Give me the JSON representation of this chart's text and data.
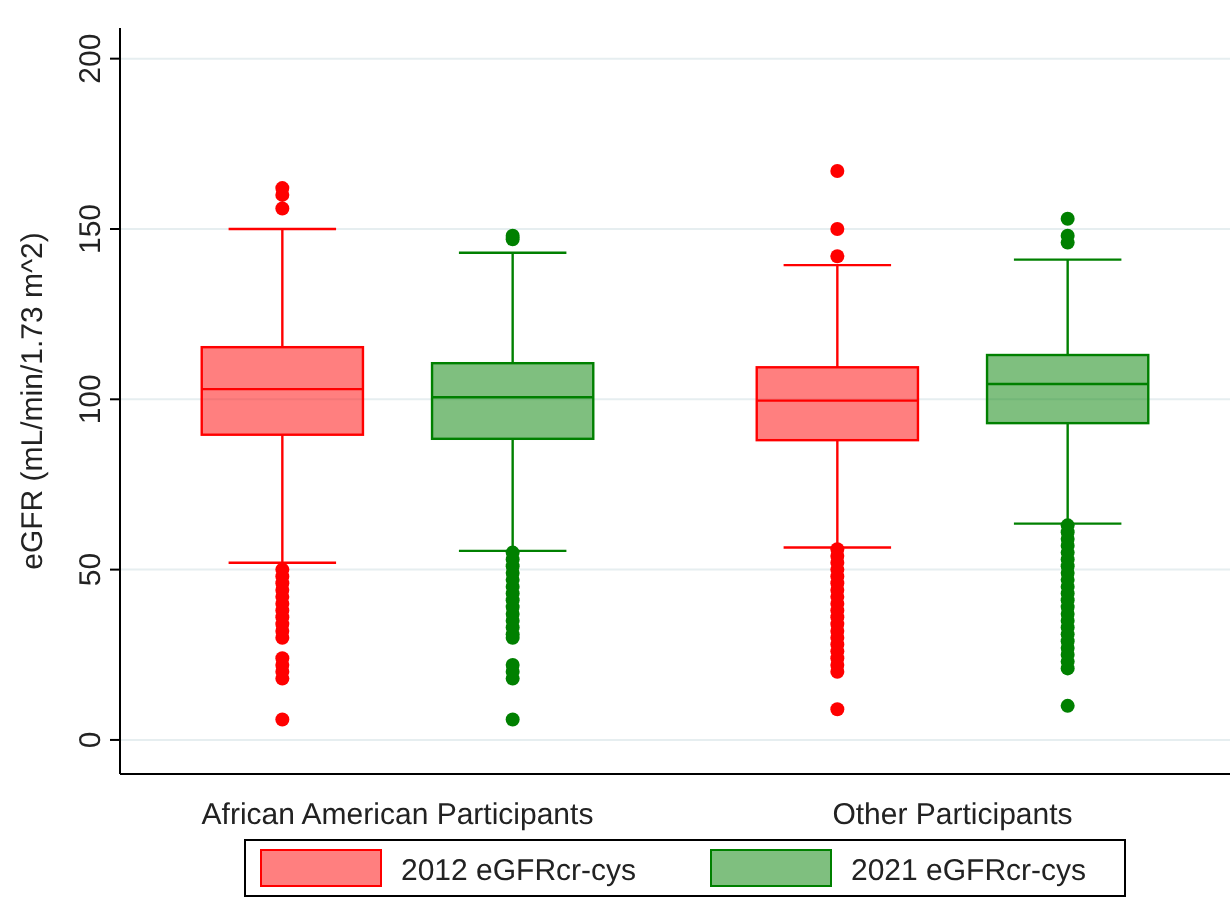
{
  "chart_data": {
    "type": "box",
    "ylabel": "eGFR (mL/min/1.73 m^2)",
    "categories": [
      "African American Participants",
      "Other Participants"
    ],
    "ylim": [
      -10,
      209
    ],
    "yticks": [
      0,
      50,
      100,
      150,
      200
    ],
    "grid": "y",
    "legend": "bottom",
    "series": [
      {
        "name": "2012 eGFRcr-cys",
        "color": "#ff0000",
        "boxes": [
          {
            "low": 52,
            "q1": 89.6,
            "median": 103,
            "q3": 115.3,
            "high": 150,
            "outliers": [
              162,
              160,
              156,
              50,
              48,
              46,
              44,
              42,
              40,
              38,
              36,
              34,
              32,
              30,
              24,
              22,
              20,
              18,
              6
            ]
          },
          {
            "low": 56.5,
            "q1": 88,
            "median": 99.6,
            "q3": 109.4,
            "high": 139.4,
            "outliers": [
              167,
              150,
              142,
              56,
              54,
              52,
              50,
              48,
              46,
              44,
              42,
              40,
              38,
              36,
              34,
              32,
              30,
              28,
              26,
              24,
              22,
              20,
              9
            ]
          }
        ]
      },
      {
        "name": "2021 eGFRcr-cys",
        "color": "#008000",
        "boxes": [
          {
            "low": 55.5,
            "q1": 88.4,
            "median": 100.6,
            "q3": 110.6,
            "high": 143,
            "outliers": [
              148,
              147,
              55,
              53,
              51,
              49,
              47,
              45,
              43,
              41,
              39,
              37,
              35,
              33,
              31,
              30,
              22,
              20,
              18,
              6
            ]
          },
          {
            "low": 63.5,
            "q1": 93,
            "median": 104.5,
            "q3": 113,
            "high": 141,
            "outliers": [
              153,
              148,
              146,
              63,
              61,
              59,
              57,
              55,
              53,
              51,
              49,
              47,
              45,
              43,
              41,
              39,
              37,
              35,
              33,
              31,
              29,
              27,
              25,
              23,
              21,
              10
            ]
          }
        ]
      }
    ]
  }
}
